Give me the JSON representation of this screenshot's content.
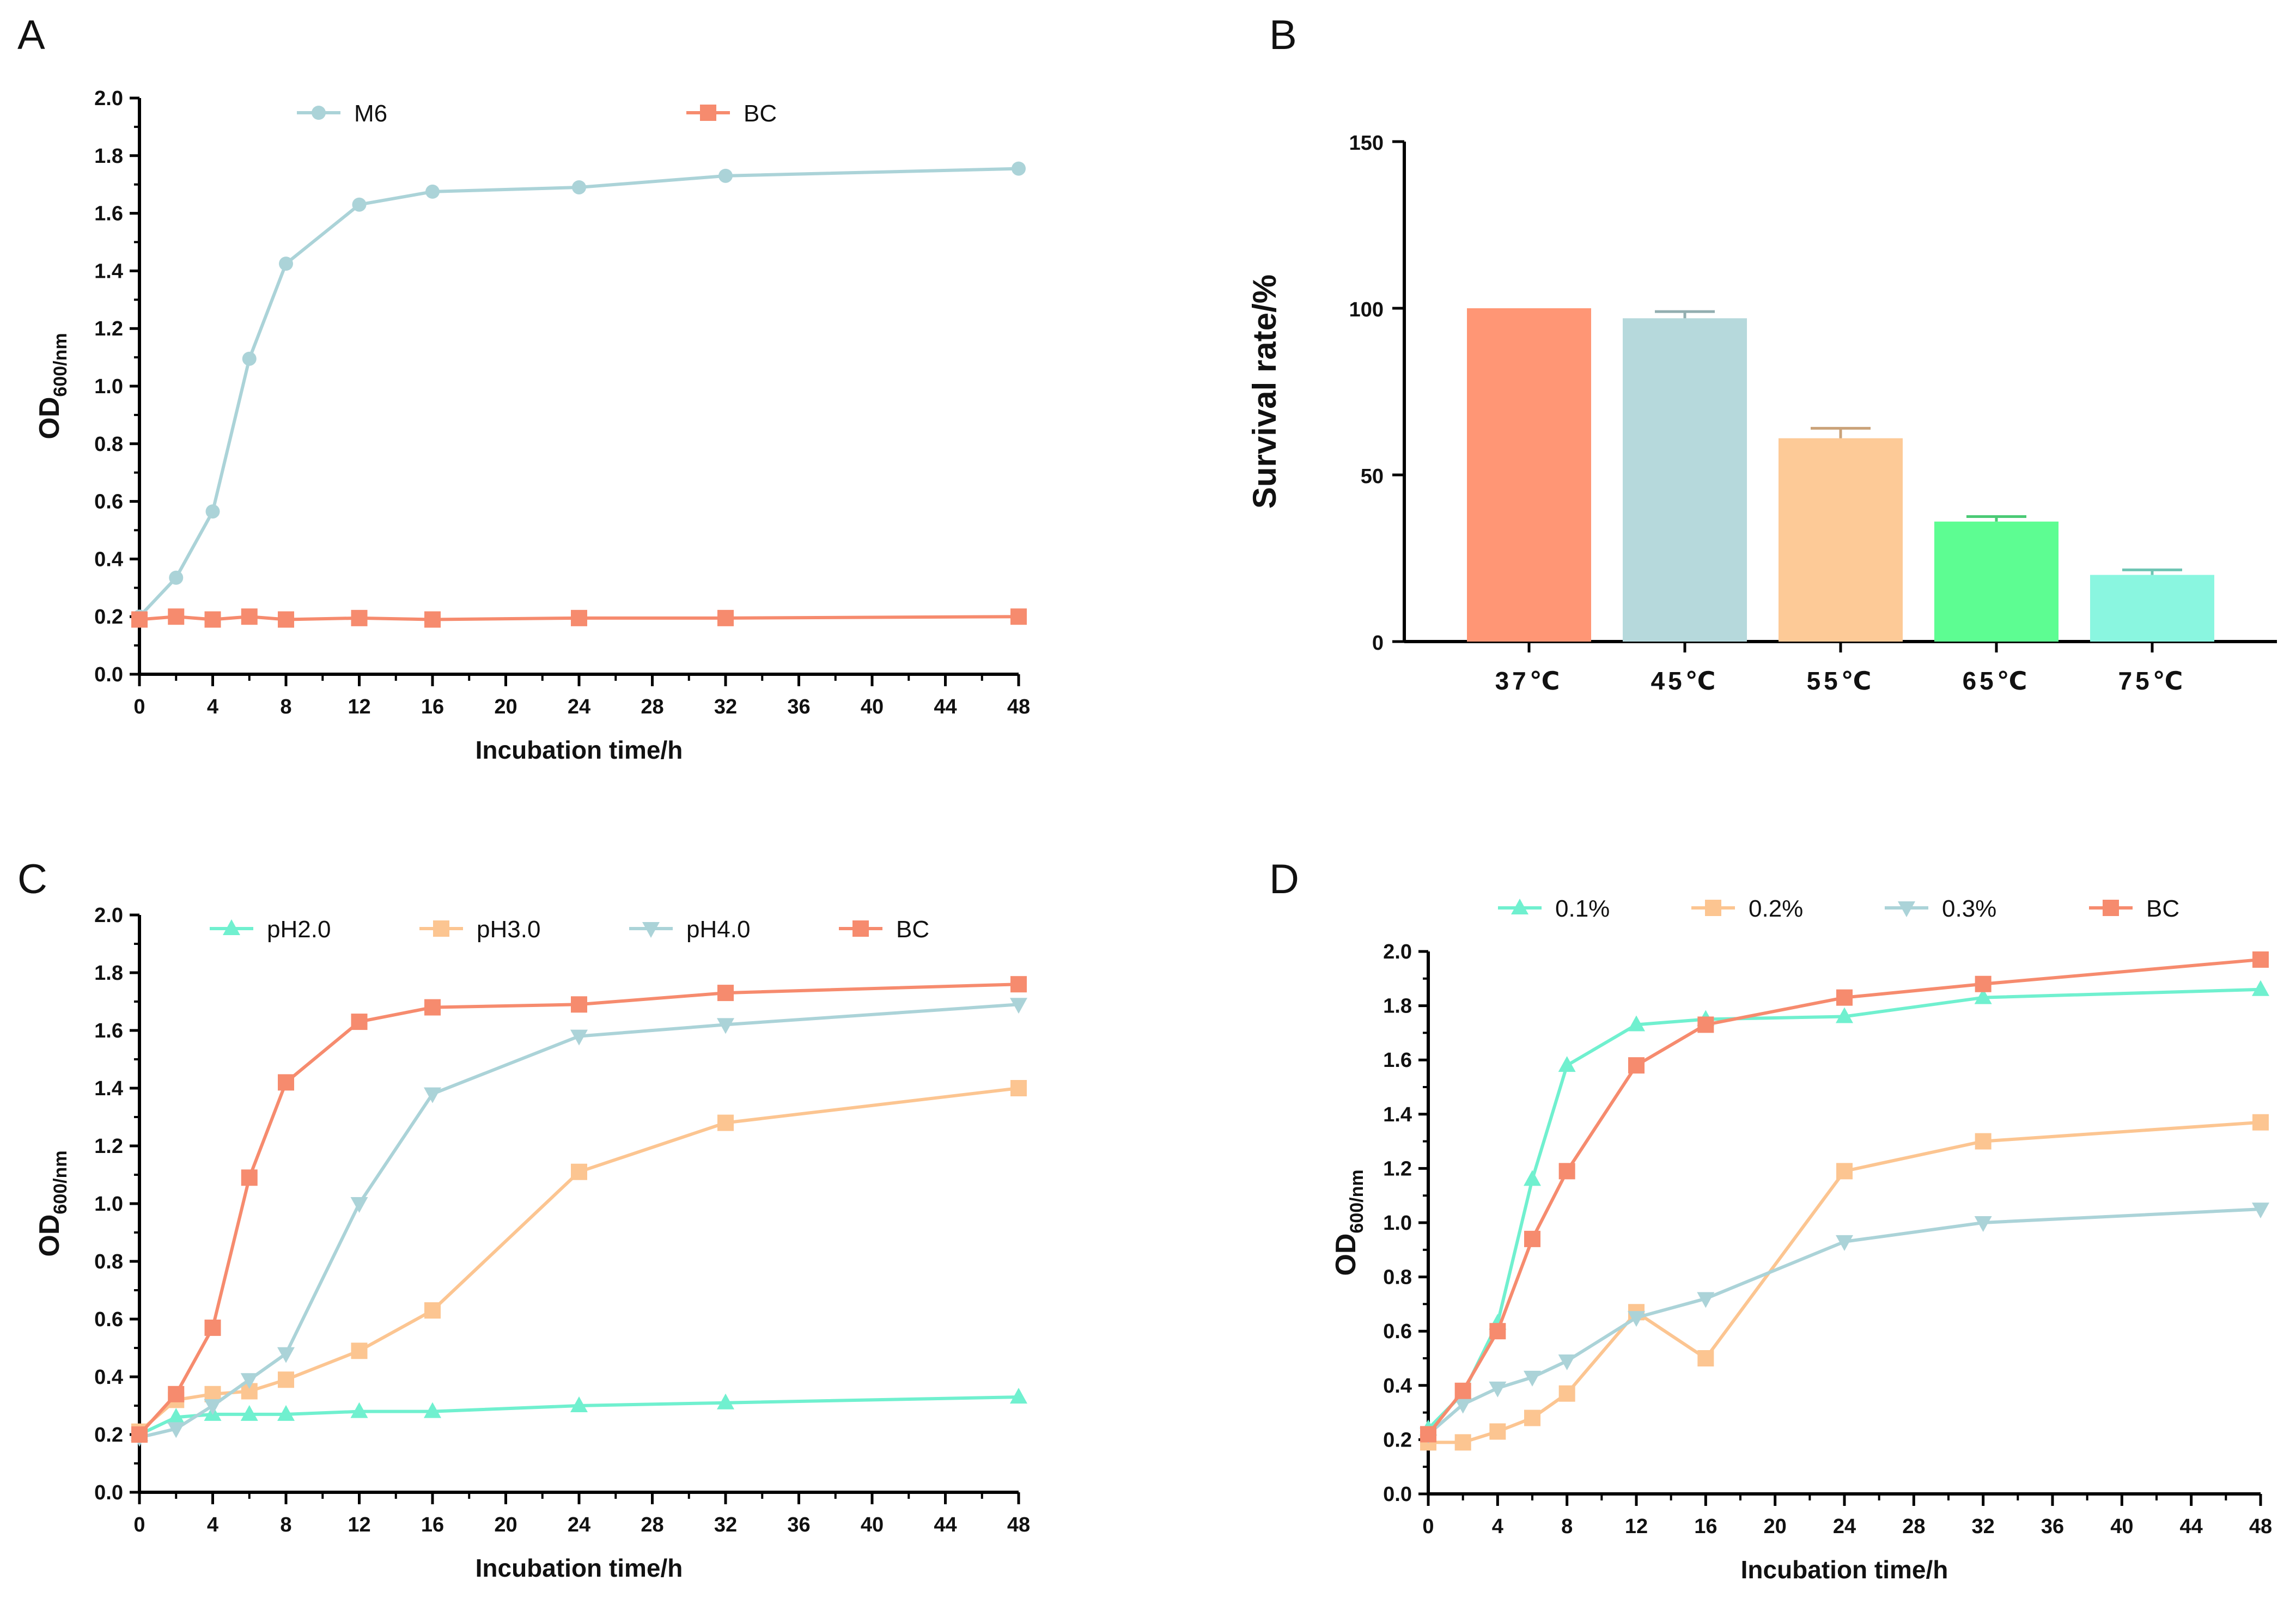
{
  "colors": {
    "teal_light": "#abd3d8",
    "salmon": "#f68b6e",
    "mint": "#70f0cf",
    "peach": "#fcc591",
    "bar_37": "#ff9675",
    "bar_45": "#b6d9dc",
    "bar_55": "#fdca97",
    "bar_65": "#5dfd92",
    "bar_75": "#8af6e0"
  },
  "chart_data": [
    {
      "panel": "A",
      "type": "line",
      "xlabel": "Incubation time/h",
      "ylabel_main": "OD",
      "ylabel_sub": "600/nm",
      "xlim": [
        0,
        48
      ],
      "ylim": [
        0,
        2.0
      ],
      "x_ticks": [
        "0",
        "4",
        "8",
        "12",
        "16",
        "20",
        "24",
        "28",
        "32",
        "36",
        "40",
        "44",
        "48"
      ],
      "y_ticks": [
        "0.0",
        "0.2",
        "0.4",
        "0.6",
        "0.8",
        "1.0",
        "1.2",
        "1.4",
        "1.6",
        "1.8",
        "2.0"
      ],
      "x": [
        0,
        2,
        4,
        6,
        8,
        12,
        16,
        24,
        32,
        48
      ],
      "series": [
        {
          "name": "M6",
          "color": "#abd3d8",
          "marker": "circle",
          "values": [
            0.2,
            0.335,
            0.565,
            1.095,
            1.425,
            1.63,
            1.675,
            1.69,
            1.73,
            1.755
          ]
        },
        {
          "name": "BC",
          "color": "#f68b6e",
          "marker": "square",
          "values": [
            0.19,
            0.2,
            0.19,
            0.2,
            0.19,
            0.195,
            0.19,
            0.195,
            0.195,
            0.2
          ]
        }
      ]
    },
    {
      "panel": "B",
      "type": "bar",
      "ylabel": "Survival rate/%",
      "ylim": [
        0,
        150
      ],
      "y_ticks": [
        "0",
        "50",
        "100",
        "150"
      ],
      "categories": [
        "37℃",
        "45℃",
        "55℃",
        "65℃",
        "75℃"
      ],
      "values": [
        100,
        97,
        61,
        36,
        20
      ],
      "errors": [
        0,
        2,
        3,
        1.5,
        1.5
      ],
      "bar_colors": [
        "#ff9675",
        "#b6d9dc",
        "#fdca97",
        "#5dfd92",
        "#8af6e0"
      ]
    },
    {
      "panel": "C",
      "type": "line",
      "xlabel": "Incubation time/h",
      "ylabel_main": "OD",
      "ylabel_sub": "600/nm",
      "xlim": [
        0,
        48
      ],
      "ylim": [
        0,
        2.0
      ],
      "x_ticks": [
        "0",
        "4",
        "8",
        "12",
        "16",
        "20",
        "24",
        "28",
        "32",
        "36",
        "40",
        "44",
        "48"
      ],
      "y_ticks": [
        "0.0",
        "0.2",
        "0.4",
        "0.6",
        "0.8",
        "1.0",
        "1.2",
        "1.4",
        "1.6",
        "1.8",
        "2.0"
      ],
      "x": [
        0,
        2,
        4,
        6,
        8,
        12,
        16,
        24,
        32,
        48
      ],
      "series": [
        {
          "name": "pH2.0",
          "color": "#70f0cf",
          "marker": "triangle-up",
          "values": [
            0.2,
            0.26,
            0.27,
            0.27,
            0.27,
            0.28,
            0.28,
            0.3,
            0.31,
            0.33
          ]
        },
        {
          "name": "pH3.0",
          "color": "#fcc591",
          "marker": "square",
          "values": [
            0.21,
            0.32,
            0.34,
            0.35,
            0.39,
            0.49,
            0.63,
            1.11,
            1.28,
            1.4
          ]
        },
        {
          "name": "pH4.0",
          "color": "#abd3d8",
          "marker": "triangle-down",
          "values": [
            0.19,
            0.22,
            0.3,
            0.39,
            0.48,
            1.0,
            1.38,
            1.58,
            1.62,
            1.69
          ]
        },
        {
          "name": "BC",
          "color": "#f68b6e",
          "marker": "square",
          "values": [
            0.2,
            0.34,
            0.57,
            1.09,
            1.42,
            1.63,
            1.68,
            1.69,
            1.73,
            1.76
          ]
        }
      ]
    },
    {
      "panel": "D",
      "type": "line",
      "xlabel": "Incubation time/h",
      "ylabel_main": "OD",
      "ylabel_sub": "600/nm",
      "xlim": [
        0,
        48
      ],
      "ylim": [
        0,
        2.0
      ],
      "x_ticks": [
        "0",
        "4",
        "8",
        "12",
        "16",
        "20",
        "24",
        "28",
        "32",
        "36",
        "40",
        "44",
        "48"
      ],
      "y_ticks": [
        "0.0",
        "0.2",
        "0.4",
        "0.6",
        "0.8",
        "1.0",
        "1.2",
        "1.4",
        "1.6",
        "1.8",
        "2.0"
      ],
      "x": [
        0,
        2,
        4,
        6,
        8,
        12,
        16,
        24,
        32,
        48
      ],
      "series": [
        {
          "name": "0.1%",
          "color": "#70f0cf",
          "marker": "triangle-up",
          "values": [
            0.24,
            0.37,
            0.63,
            1.16,
            1.58,
            1.73,
            1.75,
            1.76,
            1.83,
            1.86
          ]
        },
        {
          "name": "0.2%",
          "color": "#fcc591",
          "marker": "square",
          "values": [
            0.19,
            0.19,
            0.23,
            0.28,
            0.37,
            0.67,
            0.5,
            1.19,
            1.3,
            1.37
          ]
        },
        {
          "name": "0.3%",
          "color": "#abd3d8",
          "marker": "triangle-down",
          "values": [
            0.22,
            0.33,
            0.39,
            0.43,
            0.49,
            0.65,
            0.72,
            0.93,
            1.0,
            1.05
          ]
        },
        {
          "name": "BC",
          "color": "#f68b6e",
          "marker": "square",
          "values": [
            0.22,
            0.38,
            0.6,
            0.94,
            1.19,
            1.58,
            1.73,
            1.83,
            1.88,
            1.97
          ]
        }
      ]
    }
  ]
}
